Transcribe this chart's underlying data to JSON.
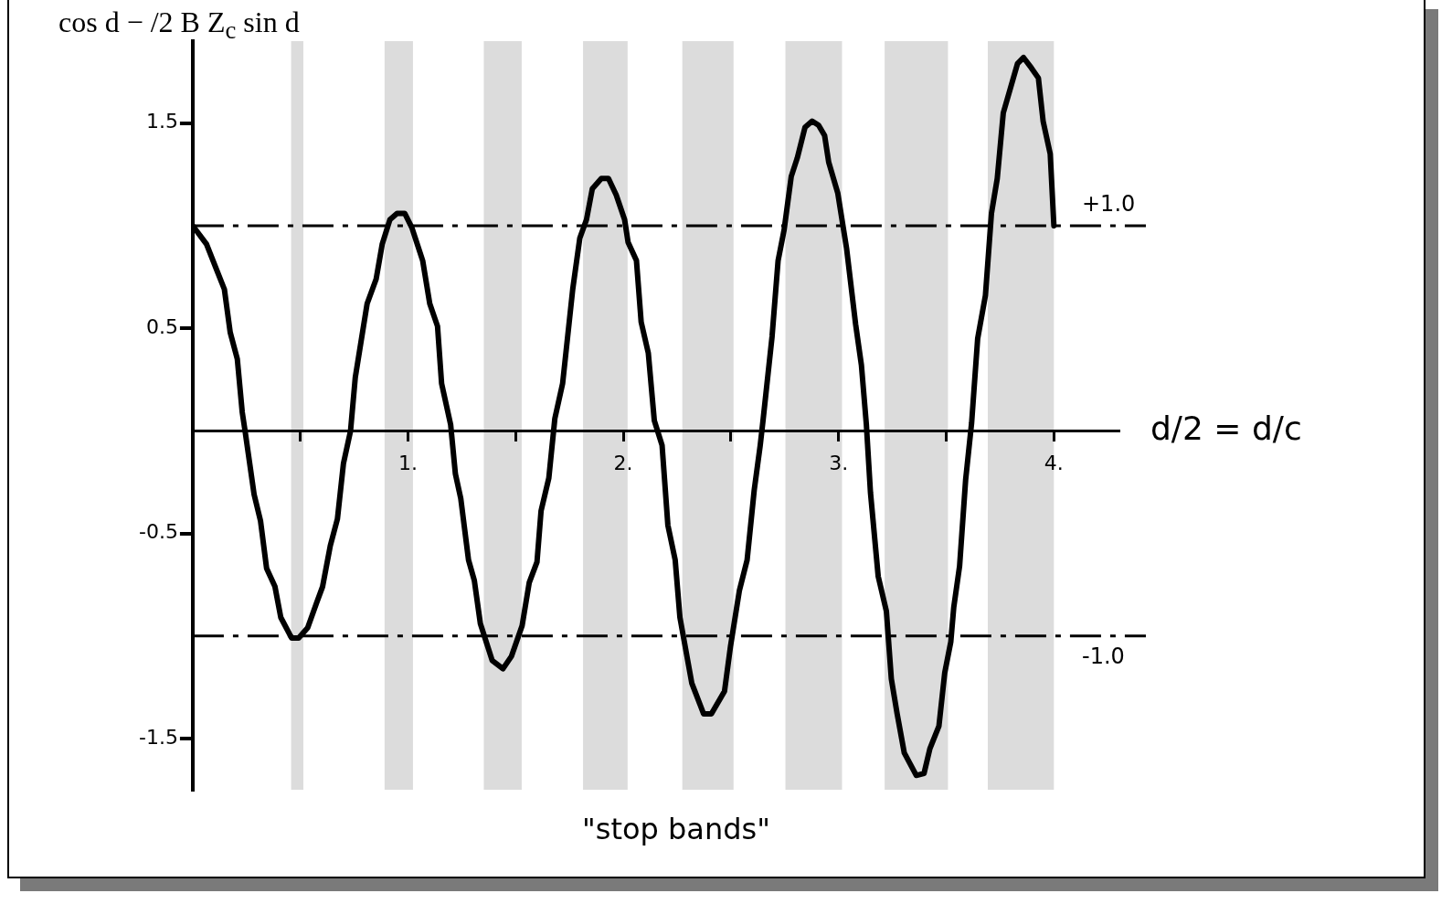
{
  "chart_data": {
    "type": "line",
    "title": "cos d − /2 B Z$_{c}$ sin d",
    "xlabel": "d/2 = d/c",
    "annotations": [
      "\"stop bands\""
    ],
    "legend": false,
    "xlim": [
      0,
      4.3
    ],
    "ylim": [
      -1.75,
      1.9
    ],
    "xticks": [
      {
        "value": 0.5,
        "label": null
      },
      {
        "value": 1,
        "label": "1."
      },
      {
        "value": 1.5,
        "label": null
      },
      {
        "value": 2,
        "label": "2."
      },
      {
        "value": 2.5,
        "label": null
      },
      {
        "value": 3,
        "label": "3."
      },
      {
        "value": 3.5,
        "label": null
      },
      {
        "value": 4,
        "label": "4."
      }
    ],
    "yticks": [
      -1.5,
      -0.5,
      0.5,
      1.5
    ],
    "bands": [
      {
        "axis": "x",
        "from": 0.457,
        "to": 0.514,
        "color": "#dcdcdc"
      },
      {
        "axis": "x",
        "from": 0.891,
        "to": 1.023,
        "color": "#dcdcdc"
      },
      {
        "axis": "x",
        "from": 1.352,
        "to": 1.528,
        "color": "#dcdcdc"
      },
      {
        "axis": "x",
        "from": 1.813,
        "to": 2.02,
        "color": "#dcdcdc"
      },
      {
        "axis": "x",
        "from": 2.274,
        "to": 2.512,
        "color": "#dcdcdc"
      },
      {
        "axis": "x",
        "from": 2.753,
        "to": 3.016,
        "color": "#dcdcdc"
      },
      {
        "axis": "x",
        "from": 3.214,
        "to": 3.508,
        "color": "#dcdcdc"
      },
      {
        "axis": "x",
        "from": 3.693,
        "to": 4.0,
        "color": "#dcdcdc"
      }
    ],
    "ref_lines": [
      {
        "axis": "y",
        "value": 1,
        "label": "+1.0",
        "color": "#000000",
        "line_style": "dashed"
      },
      {
        "axis": "y",
        "value": -1,
        "label": "-1.0",
        "color": "#000000",
        "line_style": "dashed"
      }
    ],
    "series": [
      {
        "color": "#000000",
        "line_style": "solid",
        "marker": "none",
        "x": [
          0,
          0.064,
          0.113,
          0.147,
          0.174,
          0.207,
          0.23,
          0.243,
          0.285,
          0.315,
          0.343,
          0.382,
          0.409,
          0.459,
          0.492,
          0.534,
          0.575,
          0.603,
          0.639,
          0.672,
          0.7,
          0.733,
          0.755,
          0.81,
          0.852,
          0.88,
          0.916,
          0.949,
          0.985,
          1.018,
          1.068,
          1.101,
          1.137,
          1.156,
          1.198,
          1.22,
          1.245,
          1.281,
          1.308,
          1.336,
          1.391,
          1.441,
          1.48,
          1.53,
          1.563,
          1.599,
          1.618,
          1.654,
          1.682,
          1.718,
          1.765,
          1.798,
          1.829,
          1.856,
          1.898,
          1.931,
          1.967,
          2.006,
          2.022,
          2.061,
          2.083,
          2.116,
          2.144,
          2.18,
          2.207,
          2.241,
          2.263,
          2.318,
          2.373,
          2.409,
          2.47,
          2.498,
          2.539,
          2.575,
          2.608,
          2.636,
          2.65,
          2.691,
          2.719,
          2.747,
          2.78,
          2.808,
          2.844,
          2.877,
          2.907,
          2.935,
          2.954,
          2.996,
          3.037,
          3.079,
          3.106,
          3.129,
          3.148,
          3.184,
          3.222,
          3.245,
          3.272,
          3.305,
          3.361,
          3.397,
          3.424,
          3.466,
          3.493,
          3.521,
          3.535,
          3.562,
          3.59,
          3.618,
          3.646,
          3.682,
          3.71,
          3.737,
          3.765,
          3.798,
          3.831,
          3.859,
          3.895,
          3.928,
          3.95,
          3.983,
          4.0
        ],
        "values": [
          1.0,
          0.91,
          0.78,
          0.69,
          0.48,
          0.35,
          0.09,
          0.0,
          -0.31,
          -0.44,
          -0.67,
          -0.76,
          -0.91,
          -1.01,
          -1.01,
          -0.96,
          -0.84,
          -0.76,
          -0.56,
          -0.43,
          -0.16,
          0.0,
          0.26,
          0.62,
          0.74,
          0.91,
          1.03,
          1.06,
          1.06,
          0.99,
          0.83,
          0.62,
          0.51,
          0.23,
          0.03,
          -0.21,
          -0.33,
          -0.63,
          -0.73,
          -0.94,
          -1.12,
          -1.16,
          -1.1,
          -0.95,
          -0.74,
          -0.64,
          -0.39,
          -0.23,
          0.06,
          0.23,
          0.69,
          0.94,
          1.03,
          1.18,
          1.23,
          1.23,
          1.15,
          1.03,
          0.92,
          0.83,
          0.53,
          0.38,
          0.05,
          -0.07,
          -0.46,
          -0.63,
          -0.91,
          -1.23,
          -1.38,
          -1.38,
          -1.27,
          -1.05,
          -0.78,
          -0.63,
          -0.29,
          -0.07,
          0.06,
          0.46,
          0.83,
          0.98,
          1.24,
          1.33,
          1.48,
          1.51,
          1.49,
          1.44,
          1.31,
          1.16,
          0.89,
          0.52,
          0.32,
          0.03,
          -0.3,
          -0.71,
          -0.88,
          -1.21,
          -1.38,
          -1.57,
          -1.68,
          -1.67,
          -1.55,
          -1.44,
          -1.18,
          -1.03,
          -0.86,
          -0.66,
          -0.24,
          0.04,
          0.45,
          0.66,
          1.06,
          1.23,
          1.55,
          1.67,
          1.79,
          1.82,
          1.77,
          1.72,
          1.51,
          1.35,
          1.0
        ]
      }
    ]
  }
}
